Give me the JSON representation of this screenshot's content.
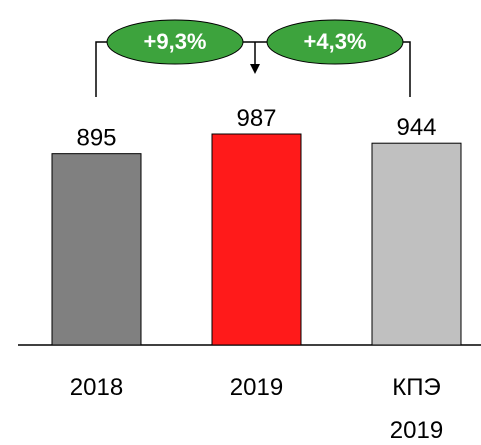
{
  "chart_data": {
    "type": "bar",
    "categories": [
      "2018",
      "2019",
      "КПЭ\n2019"
    ],
    "values": [
      895,
      987,
      944
    ],
    "colors": [
      "#808080",
      "#ff1a1a",
      "#c0c0c0"
    ],
    "annotations": [
      "+9,3%",
      "+4,3%"
    ]
  }
}
